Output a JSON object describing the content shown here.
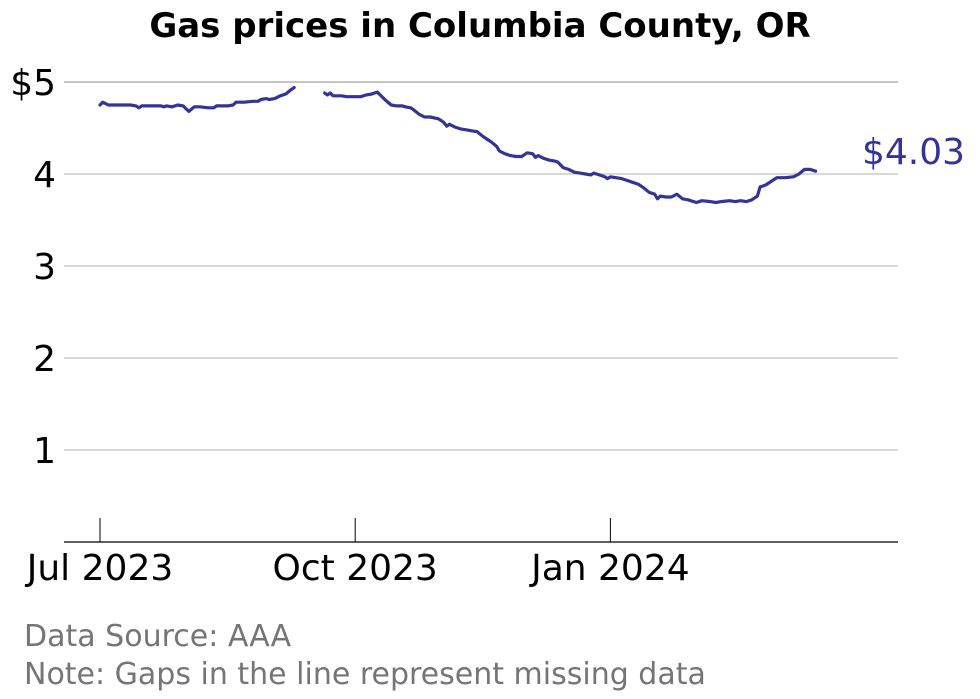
{
  "chart_data": {
    "type": "line",
    "title": "Gas prices in Columbia County, OR",
    "xlabel": "",
    "ylabel": "",
    "x_start": "2023-07-01",
    "x_end": "2024-03-31",
    "x_ticks": [
      {
        "date": "2023-07-01",
        "label": "Jul 2023"
      },
      {
        "date": "2023-10-01",
        "label": "Oct 2023"
      },
      {
        "date": "2024-01-01",
        "label": "Jan 2024"
      }
    ],
    "y_ticks": [
      {
        "value": 1,
        "label": "1"
      },
      {
        "value": 2,
        "label": "2"
      },
      {
        "value": 3,
        "label": "3"
      },
      {
        "value": 4,
        "label": "4"
      },
      {
        "value": 5,
        "label": "$5"
      }
    ],
    "ylim": [
      0,
      5.2
    ],
    "grid": true,
    "line_color": "#33339a",
    "grid_color": "#b0b0b0",
    "series": [
      {
        "segments": [
          [
            [
              "2023-07-01",
              4.75
            ],
            [
              "2023-07-02",
              4.78
            ],
            [
              "2023-07-04",
              4.75
            ],
            [
              "2023-07-08",
              4.75
            ],
            [
              "2023-07-12",
              4.75
            ],
            [
              "2023-07-14",
              4.74
            ],
            [
              "2023-07-15",
              4.72
            ],
            [
              "2023-07-16",
              4.74
            ],
            [
              "2023-07-19",
              4.74
            ],
            [
              "2023-07-23",
              4.74
            ],
            [
              "2023-07-24",
              4.73
            ],
            [
              "2023-07-25",
              4.74
            ],
            [
              "2023-07-27",
              4.73
            ],
            [
              "2023-07-29",
              4.75
            ],
            [
              "2023-07-31",
              4.74
            ],
            [
              "2023-08-01",
              4.71
            ],
            [
              "2023-08-02",
              4.68
            ],
            [
              "2023-08-04",
              4.73
            ],
            [
              "2023-08-06",
              4.73
            ],
            [
              "2023-08-09",
              4.72
            ],
            [
              "2023-08-11",
              4.72
            ],
            [
              "2023-08-12",
              4.74
            ],
            [
              "2023-08-14",
              4.74
            ],
            [
              "2023-08-16",
              4.74
            ],
            [
              "2023-08-18",
              4.75
            ],
            [
              "2023-08-19",
              4.78
            ],
            [
              "2023-08-22",
              4.78
            ],
            [
              "2023-08-25",
              4.79
            ],
            [
              "2023-08-27",
              4.79
            ],
            [
              "2023-08-28",
              4.81
            ],
            [
              "2023-08-30",
              4.82
            ],
            [
              "2023-08-31",
              4.81
            ],
            [
              "2023-09-02",
              4.82
            ],
            [
              "2023-09-04",
              4.85
            ],
            [
              "2023-09-06",
              4.87
            ],
            [
              "2023-09-08",
              4.92
            ],
            [
              "2023-09-09",
              4.94
            ]
          ],
          [
            [
              "2023-09-20",
              4.88
            ],
            [
              "2023-09-21",
              4.86
            ],
            [
              "2023-09-22",
              4.88
            ],
            [
              "2023-09-23",
              4.85
            ],
            [
              "2023-09-26",
              4.85
            ],
            [
              "2023-09-28",
              4.84
            ],
            [
              "2023-09-30",
              4.84
            ],
            [
              "2023-10-03",
              4.84
            ],
            [
              "2023-10-05",
              4.86
            ],
            [
              "2023-10-07",
              4.87
            ],
            [
              "2023-10-08",
              4.88
            ],
            [
              "2023-10-09",
              4.89
            ],
            [
              "2023-10-10",
              4.86
            ],
            [
              "2023-10-12",
              4.8
            ],
            [
              "2023-10-14",
              4.75
            ],
            [
              "2023-10-16",
              4.74
            ],
            [
              "2023-10-18",
              4.74
            ],
            [
              "2023-10-19",
              4.73
            ],
            [
              "2023-10-21",
              4.72
            ],
            [
              "2023-10-22",
              4.7
            ],
            [
              "2023-10-24",
              4.65
            ],
            [
              "2023-10-26",
              4.62
            ],
            [
              "2023-10-28",
              4.62
            ],
            [
              "2023-10-31",
              4.6
            ],
            [
              "2023-11-01",
              4.58
            ],
            [
              "2023-11-02",
              4.56
            ],
            [
              "2023-11-03",
              4.52
            ],
            [
              "2023-11-04",
              4.54
            ],
            [
              "2023-11-06",
              4.51
            ],
            [
              "2023-11-08",
              4.49
            ],
            [
              "2023-11-10",
              4.48
            ],
            [
              "2023-11-12",
              4.47
            ],
            [
              "2023-11-14",
              4.46
            ],
            [
              "2023-11-16",
              4.41
            ],
            [
              "2023-11-18",
              4.37
            ],
            [
              "2023-11-19",
              4.35
            ],
            [
              "2023-11-21",
              4.3
            ],
            [
              "2023-11-22",
              4.25
            ],
            [
              "2023-11-24",
              4.22
            ],
            [
              "2023-11-26",
              4.2
            ],
            [
              "2023-11-28",
              4.19
            ],
            [
              "2023-11-30",
              4.19
            ],
            [
              "2023-12-01",
              4.21
            ],
            [
              "2023-12-02",
              4.23
            ],
            [
              "2023-12-04",
              4.22
            ],
            [
              "2023-12-05",
              4.18
            ],
            [
              "2023-12-06",
              4.2
            ],
            [
              "2023-12-08",
              4.17
            ],
            [
              "2023-12-10",
              4.15
            ],
            [
              "2023-12-12",
              4.14
            ],
            [
              "2023-12-13",
              4.13
            ],
            [
              "2023-12-15",
              4.07
            ],
            [
              "2023-12-17",
              4.05
            ],
            [
              "2023-12-19",
              4.02
            ],
            [
              "2023-12-21",
              4.01
            ],
            [
              "2023-12-23",
              4.0
            ],
            [
              "2023-12-25",
              3.99
            ],
            [
              "2023-12-26",
              4.01
            ],
            [
              "2023-12-28",
              3.99
            ],
            [
              "2023-12-30",
              3.97
            ],
            [
              "2023-12-31",
              3.95
            ],
            [
              "2024-01-01",
              3.97
            ],
            [
              "2024-01-03",
              3.96
            ],
            [
              "2024-01-05",
              3.95
            ],
            [
              "2024-01-07",
              3.93
            ],
            [
              "2024-01-09",
              3.91
            ],
            [
              "2024-01-11",
              3.89
            ],
            [
              "2024-01-13",
              3.85
            ],
            [
              "2024-01-15",
              3.8
            ],
            [
              "2024-01-17",
              3.78
            ],
            [
              "2024-01-18",
              3.73
            ],
            [
              "2024-01-19",
              3.76
            ],
            [
              "2024-01-21",
              3.75
            ],
            [
              "2024-01-23",
              3.75
            ],
            [
              "2024-01-25",
              3.78
            ],
            [
              "2024-01-27",
              3.73
            ],
            [
              "2024-01-29",
              3.72
            ],
            [
              "2024-02-01",
              3.69
            ],
            [
              "2024-02-03",
              3.71
            ],
            [
              "2024-02-06",
              3.7
            ],
            [
              "2024-02-08",
              3.69
            ],
            [
              "2024-02-10",
              3.7
            ],
            [
              "2024-02-13",
              3.71
            ],
            [
              "2024-02-15",
              3.7
            ],
            [
              "2024-02-17",
              3.71
            ],
            [
              "2024-02-19",
              3.7
            ],
            [
              "2024-02-21",
              3.72
            ],
            [
              "2024-02-23",
              3.76
            ],
            [
              "2024-02-24",
              3.86
            ],
            [
              "2024-02-26",
              3.88
            ],
            [
              "2024-02-28",
              3.92
            ],
            [
              "2024-03-01",
              3.96
            ],
            [
              "2024-03-04",
              3.96
            ],
            [
              "2024-03-07",
              3.97
            ],
            [
              "2024-03-09",
              4.0
            ],
            [
              "2024-03-11",
              4.05
            ],
            [
              "2024-03-13",
              4.05
            ],
            [
              "2024-03-15",
              4.03
            ]
          ]
        ]
      }
    ],
    "last_value_label": "$4.03"
  },
  "footer": {
    "source": "Data Source: AAA",
    "note": "Note: Gaps in the line represent missing data"
  }
}
